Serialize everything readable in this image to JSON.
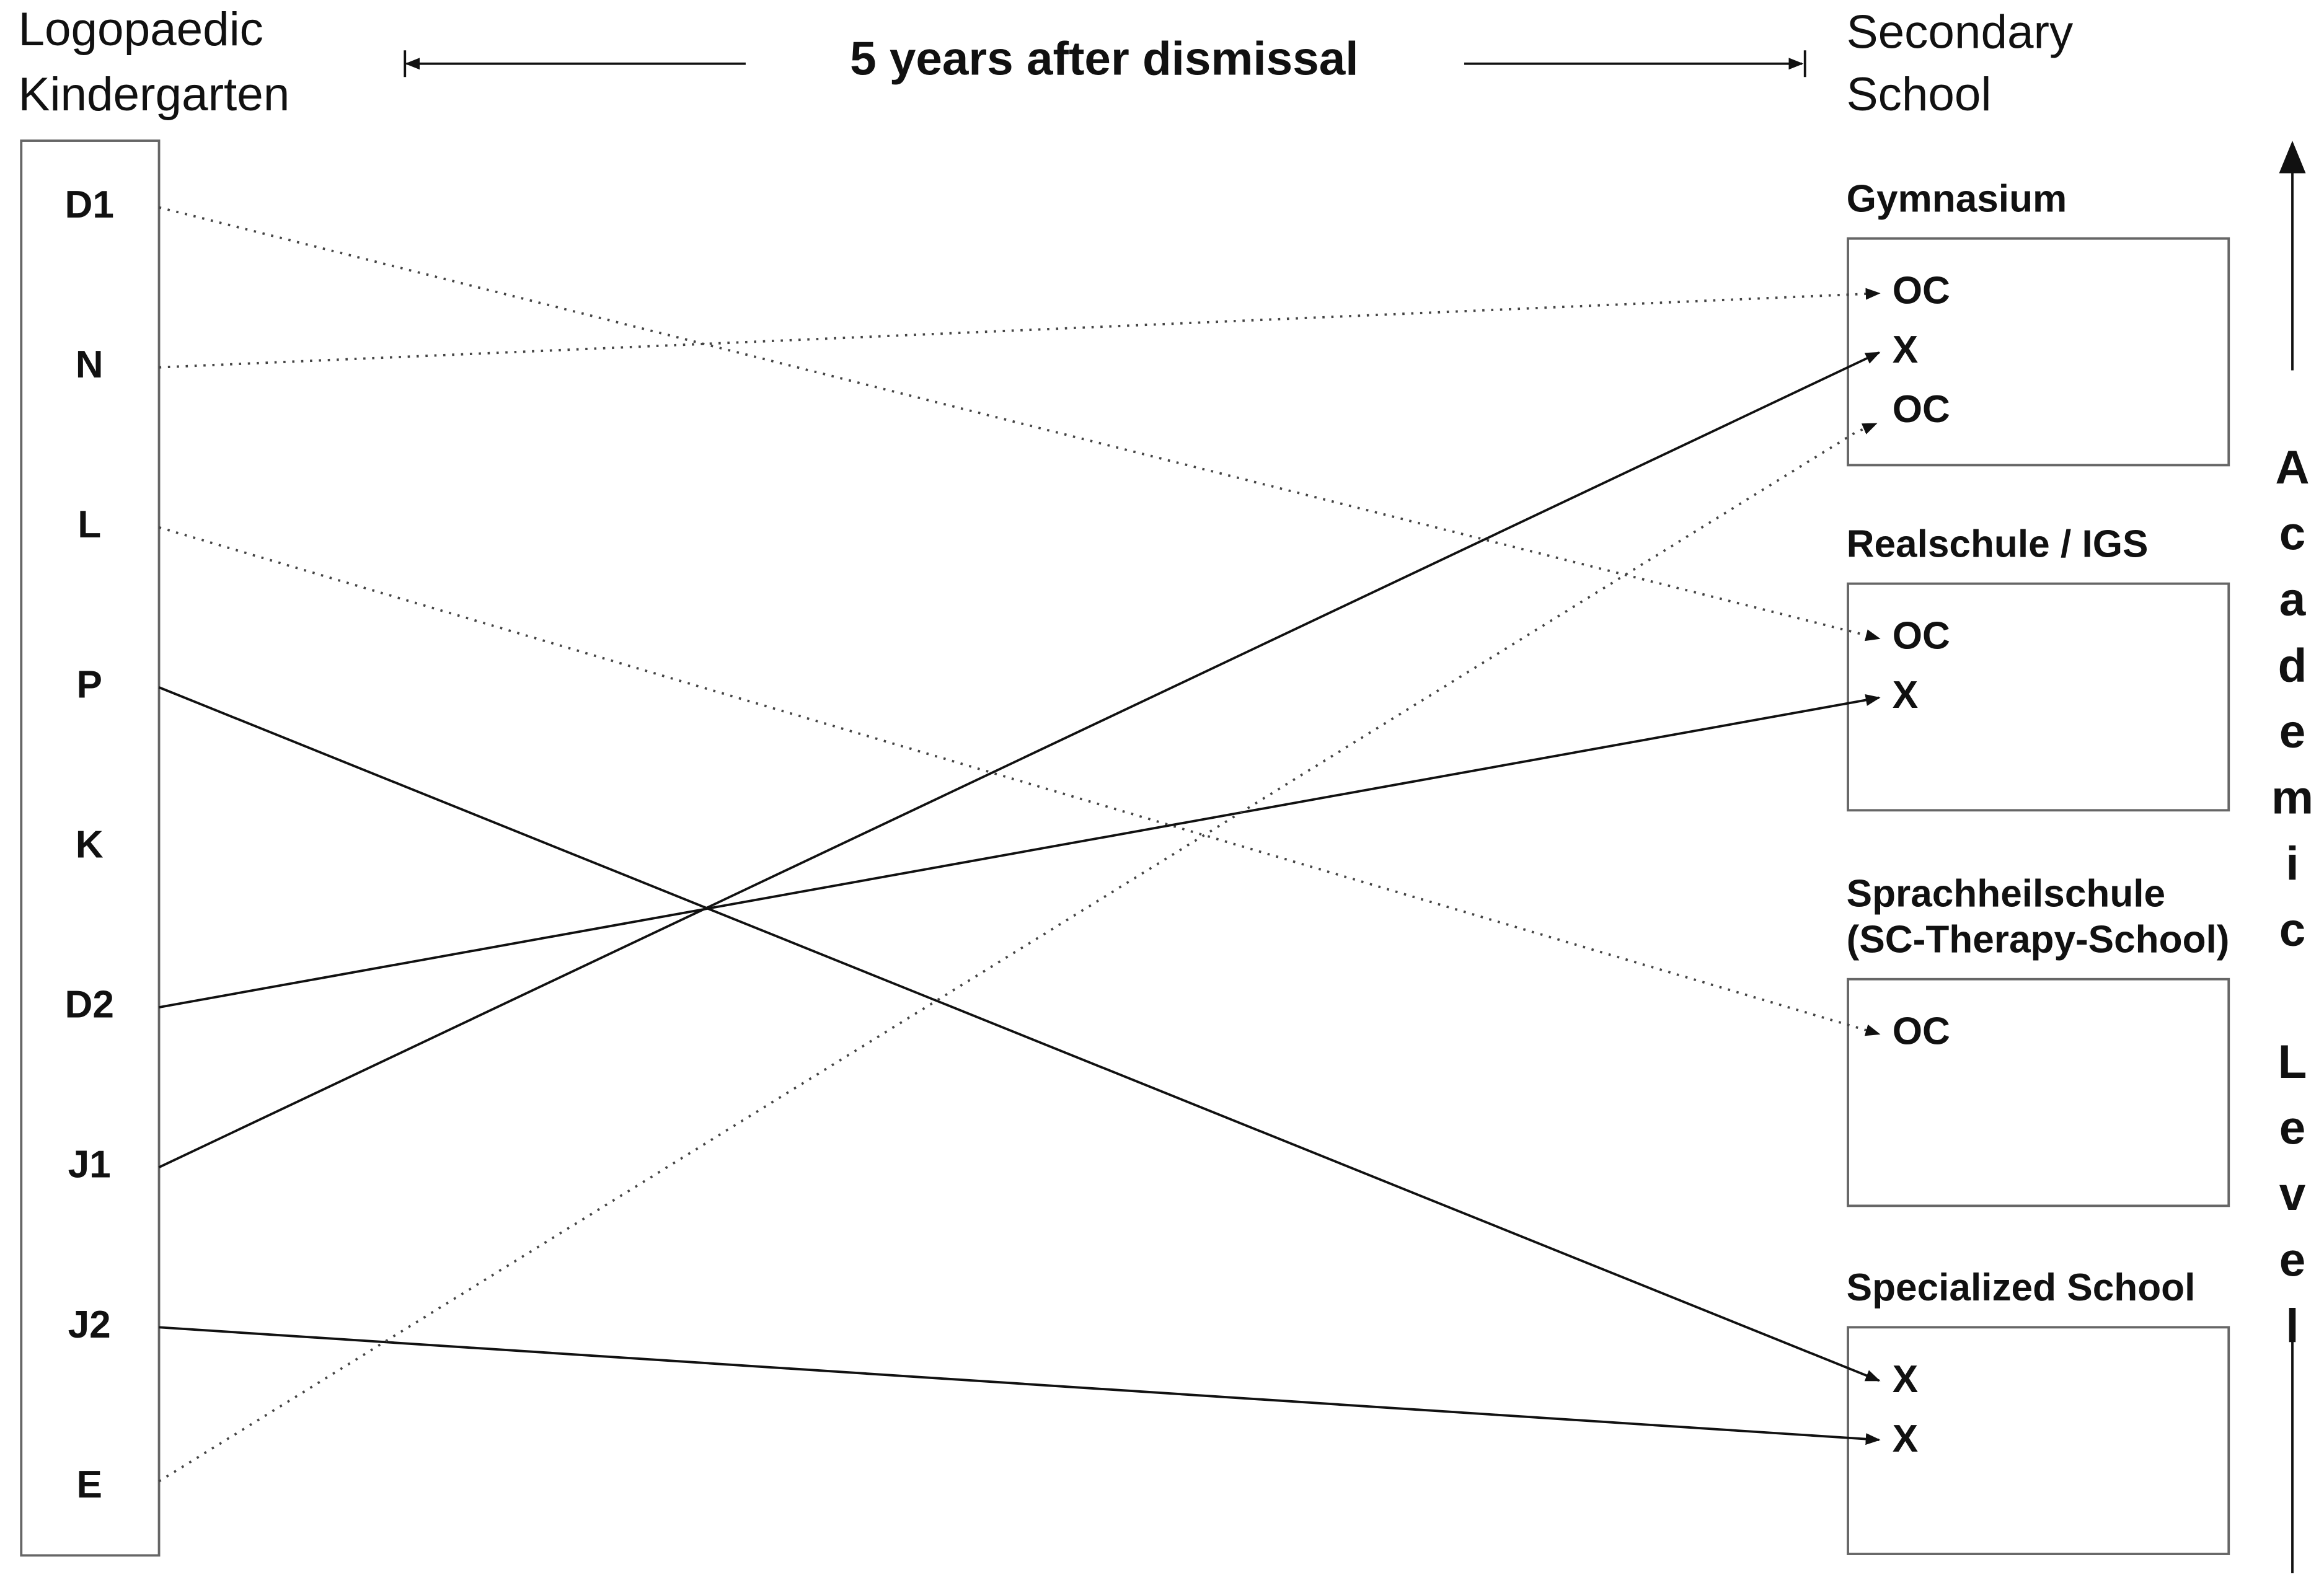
{
  "header": {
    "left_title": [
      "Logopaedic",
      "Kindergarten"
    ],
    "middle": "5 years after dismissal",
    "right_title": [
      "Secondary",
      "School"
    ]
  },
  "children": [
    "D1",
    "N",
    "L",
    "P",
    "K",
    "D2",
    "J1",
    "J2",
    "E"
  ],
  "schools": [
    {
      "name": [
        "Gymnasium"
      ],
      "entries": [
        "OC",
        "X",
        "OC"
      ]
    },
    {
      "name": [
        "Realschule / IGS"
      ],
      "entries": [
        "OC",
        "X"
      ]
    },
    {
      "name": [
        "Sprachheilschule",
        "(SC-Therapy-School)"
      ],
      "entries": [
        "OC"
      ]
    },
    {
      "name": [
        "Specialized School"
      ],
      "entries": [
        "X",
        "X"
      ]
    }
  ],
  "axis_label": "Academic Level"
}
